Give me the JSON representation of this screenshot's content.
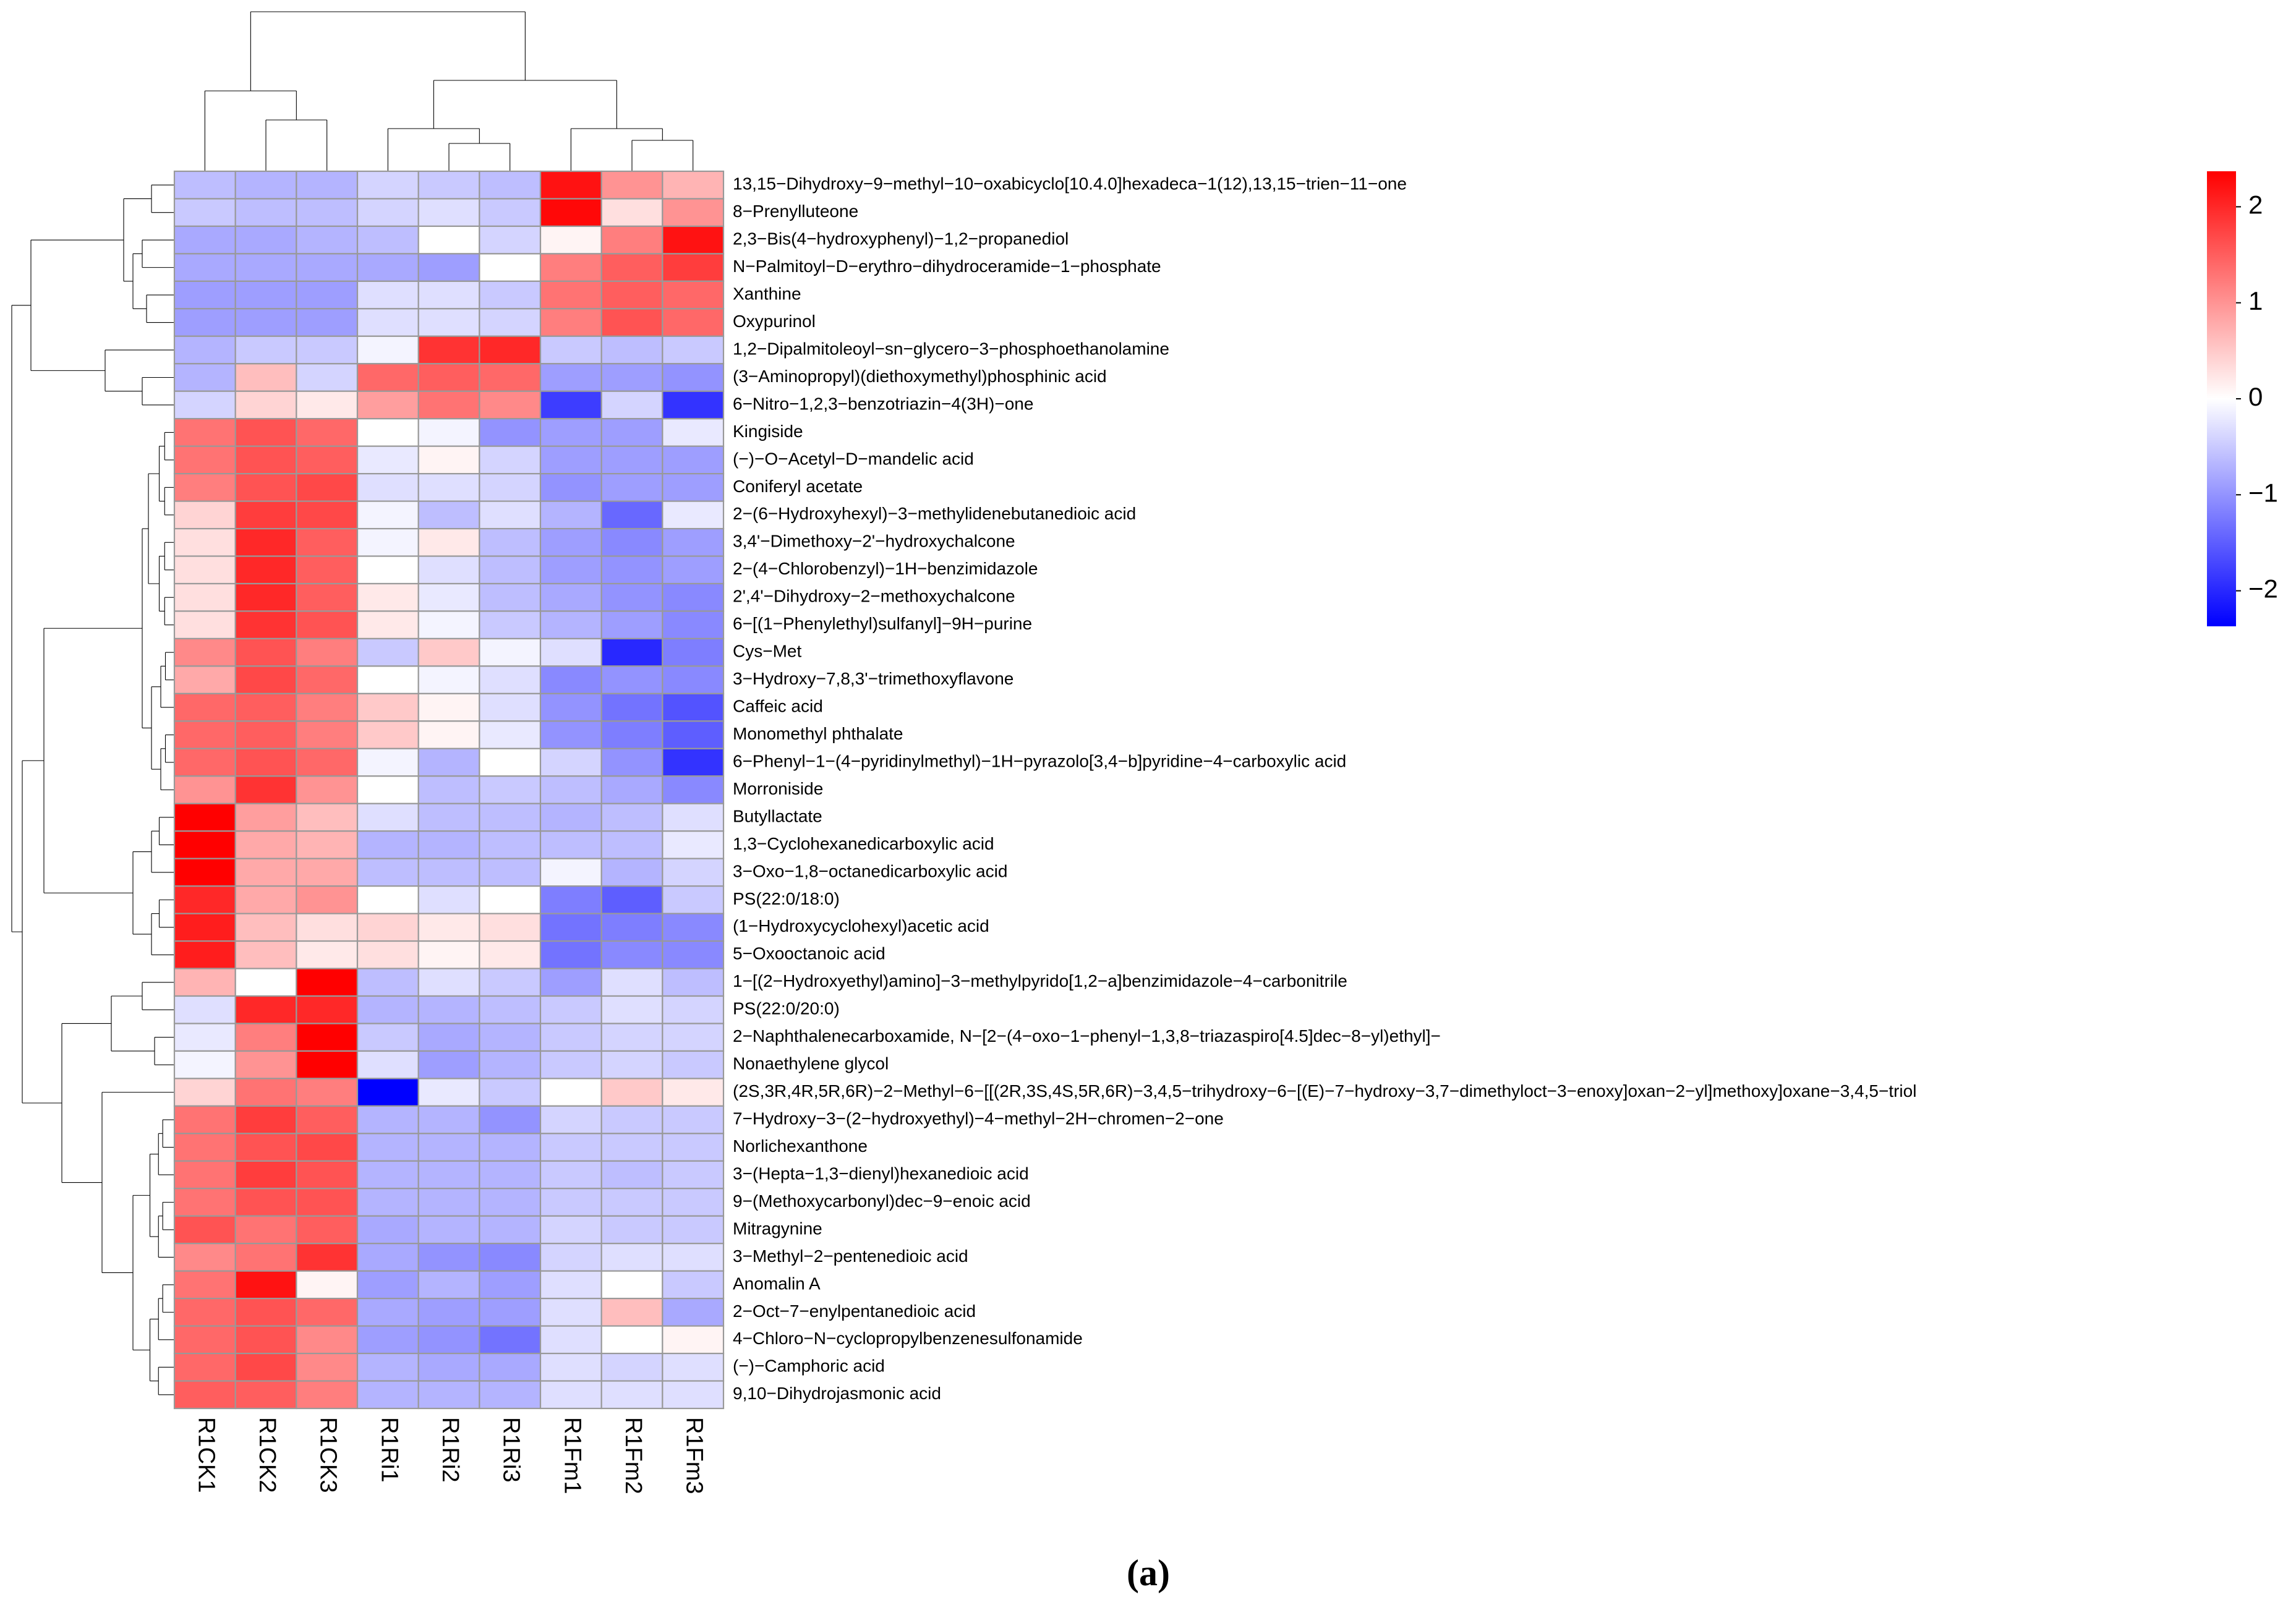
{
  "chart_data": {
    "type": "heatmap",
    "caption": "(a)",
    "columns": [
      "R1CK1",
      "R1CK2",
      "R1CK3",
      "R1Ri1",
      "R1Ri2",
      "R1Ri3",
      "R1Fm1",
      "R1Fm2",
      "R1Fm3"
    ],
    "rows": [
      "13,15−Dihydroxy−9−methyl−10−oxabicyclo[10.4.0]hexadeca−1(12),13,15−trien−11−one",
      "8−Prenylluteone",
      "2,3−Bis(4−hydroxyphenyl)−1,2−propanediol",
      "N−Palmitoyl−D−erythro−dihydroceramide−1−phosphate",
      "Xanthine",
      "Oxypurinol",
      "1,2−Dipalmitoleoyl−sn−glycero−3−phosphoethanolamine",
      "(3−Aminopropyl)(diethoxymethyl)phosphinic acid",
      "6−Nitro−1,2,3−benzotriazin−4(3H)−one",
      "Kingiside",
      "(−)−O−Acetyl−D−mandelic acid",
      "Coniferyl acetate",
      "2−(6−Hydroxyhexyl)−3−methylidenebutanedioic acid",
      "3,4'−Dimethoxy−2'−hydroxychalcone",
      "2−(4−Chlorobenzyl)−1H−benzimidazole",
      "2',4'−Dihydroxy−2−methoxychalcone",
      "6−[(1−Phenylethyl)sulfanyl]−9H−purine",
      "Cys−Met",
      "3−Hydroxy−7,8,3'−trimethoxyflavone",
      "Caffeic acid",
      "Monomethyl phthalate",
      "6−Phenyl−1−(4−pyridinylmethyl)−1H−pyrazolo[3,4−b]pyridine−4−carboxylic acid",
      "Morroniside",
      "Butyllactate",
      "1,3−Cyclohexanedicarboxylic acid",
      "3−Oxo−1,8−octanedicarboxylic acid",
      "PS(22:0/18:0)",
      "(1−Hydroxycyclohexyl)acetic acid",
      "5−Oxooctanoic acid",
      "1−[(2−Hydroxyethyl)amino]−3−methylpyrido[1,2−a]benzimidazole−4−carbonitrile",
      "PS(22:0/20:0)",
      "2−Naphthalenecarboxamide, N−[2−(4−oxo−1−phenyl−1,3,8−triazaspiro[4.5]dec−8−yl)ethyl]−",
      "Nonaethylene glycol",
      "(2S,3R,4R,5R,6R)−2−Methyl−6−[[(2R,3S,4S,5R,6R)−3,4,5−trihydroxy−6−[(E)−7−hydroxy−3,7−dimethyloct−3−enoxy]oxan−2−yl]methoxy]oxane−3,4,5−triol",
      "7−Hydroxy−3−(2−hydroxyethyl)−4−methyl−2H−chromen−2−one",
      "Norlichexanthone",
      "3−(Hepta−1,3−dienyl)hexanedioic acid",
      "9−(Methoxycarbonyl)dec−9−enoic acid",
      "Mitragynine",
      "3−Methyl−2−pentenedioic acid",
      "Anomalin A",
      "2−Oct−7−enylpentanedioic acid",
      "4−Chloro−N−cyclopropylbenzenesulfonamide",
      "(−)−Camphoric acid",
      "9,10−Dihydrojasmonic acid"
    ],
    "values": [
      [
        -0.6,
        -0.7,
        -0.7,
        -0.4,
        -0.5,
        -0.6,
        2.2,
        1.0,
        0.7
      ],
      [
        -0.5,
        -0.6,
        -0.6,
        -0.4,
        -0.3,
        -0.5,
        2.3,
        0.3,
        1.0
      ],
      [
        -0.8,
        -0.8,
        -0.7,
        -0.6,
        0.0,
        -0.4,
        0.1,
        1.2,
        2.2
      ],
      [
        -0.8,
        -0.8,
        -0.8,
        -0.8,
        -0.9,
        0.0,
        1.2,
        1.5,
        1.8
      ],
      [
        -0.9,
        -0.9,
        -0.9,
        -0.3,
        -0.3,
        -0.5,
        1.3,
        1.5,
        1.4
      ],
      [
        -0.9,
        -0.9,
        -0.9,
        -0.3,
        -0.3,
        -0.4,
        1.2,
        1.6,
        1.4
      ],
      [
        -0.7,
        -0.5,
        -0.5,
        -0.1,
        1.9,
        2.0,
        -0.5,
        -0.6,
        -0.5
      ],
      [
        -0.7,
        0.6,
        -0.4,
        1.4,
        1.5,
        1.4,
        -0.9,
        -0.9,
        -1.0
      ],
      [
        -0.4,
        0.4,
        0.2,
        0.9,
        1.3,
        1.1,
        -1.8,
        -0.4,
        -1.9
      ],
      [
        1.3,
        1.6,
        1.4,
        0.0,
        -0.1,
        -1.0,
        -0.9,
        -0.9,
        -0.2
      ],
      [
        1.3,
        1.6,
        1.5,
        -0.2,
        0.1,
        -0.4,
        -0.9,
        -0.9,
        -0.9
      ],
      [
        1.2,
        1.6,
        1.7,
        -0.3,
        -0.3,
        -0.4,
        -1.0,
        -0.9,
        -0.9
      ],
      [
        0.4,
        1.8,
        1.7,
        -0.1,
        -0.6,
        -0.3,
        -0.7,
        -1.4,
        -0.2
      ],
      [
        0.3,
        2.0,
        1.5,
        -0.1,
        0.2,
        -0.6,
        -0.9,
        -1.1,
        -0.9
      ],
      [
        0.3,
        2.0,
        1.5,
        0.0,
        -0.3,
        -0.6,
        -0.9,
        -1.0,
        -0.9
      ],
      [
        0.3,
        2.0,
        1.5,
        0.2,
        -0.2,
        -0.6,
        -0.8,
        -1.0,
        -1.1
      ],
      [
        0.3,
        1.9,
        1.6,
        0.2,
        -0.1,
        -0.5,
        -0.7,
        -0.9,
        -1.1
      ],
      [
        1.1,
        1.6,
        1.2,
        -0.5,
        0.5,
        -0.1,
        -0.3,
        -2.0,
        -1.2
      ],
      [
        0.8,
        1.7,
        1.4,
        0.0,
        -0.1,
        -0.3,
        -1.1,
        -1.0,
        -1.1
      ],
      [
        1.4,
        1.5,
        1.2,
        0.5,
        0.1,
        -0.3,
        -1.0,
        -1.3,
        -1.6
      ],
      [
        1.4,
        1.5,
        1.2,
        0.5,
        0.1,
        -0.2,
        -1.0,
        -1.2,
        -1.5
      ],
      [
        1.4,
        1.6,
        1.4,
        -0.1,
        -0.7,
        0.0,
        -0.4,
        -1.0,
        -1.9
      ],
      [
        1.0,
        1.9,
        1.0,
        0.0,
        -0.6,
        -0.5,
        -0.6,
        -0.8,
        -1.1
      ],
      [
        2.4,
        0.9,
        0.6,
        -0.3,
        -0.6,
        -0.6,
        -0.7,
        -0.6,
        -0.3
      ],
      [
        2.4,
        0.8,
        0.7,
        -0.7,
        -0.7,
        -0.6,
        -0.6,
        -0.6,
        -0.2
      ],
      [
        2.4,
        0.8,
        0.8,
        -0.6,
        -0.6,
        -0.6,
        -0.1,
        -0.7,
        -0.4
      ],
      [
        2.0,
        0.8,
        1.0,
        0.0,
        -0.3,
        0.0,
        -1.2,
        -1.5,
        -0.5
      ],
      [
        2.1,
        0.6,
        0.3,
        0.4,
        0.2,
        0.3,
        -1.3,
        -1.2,
        -1.1
      ],
      [
        2.1,
        0.6,
        0.2,
        0.3,
        0.1,
        0.2,
        -1.3,
        -1.1,
        -1.1
      ],
      [
        0.7,
        0.0,
        2.4,
        -0.6,
        -0.3,
        -0.5,
        -0.9,
        -0.3,
        -0.6
      ],
      [
        -0.3,
        2.0,
        2.0,
        -0.7,
        -0.7,
        -0.6,
        -0.5,
        -0.3,
        -0.4
      ],
      [
        -0.2,
        1.2,
        2.4,
        -0.5,
        -0.8,
        -0.7,
        -0.5,
        -0.4,
        -0.4
      ],
      [
        -0.1,
        1.0,
        2.4,
        -0.3,
        -0.9,
        -0.7,
        -0.5,
        -0.4,
        -0.5
      ],
      [
        0.4,
        1.3,
        1.2,
        -2.4,
        -0.2,
        -0.5,
        0.0,
        0.5,
        0.2
      ],
      [
        1.3,
        1.8,
        1.5,
        -0.7,
        -0.7,
        -1.0,
        -0.4,
        -0.5,
        -0.5
      ],
      [
        1.3,
        1.6,
        1.7,
        -0.7,
        -0.7,
        -0.7,
        -0.5,
        -0.5,
        -0.5
      ],
      [
        1.3,
        1.8,
        1.6,
        -0.7,
        -0.7,
        -0.7,
        -0.5,
        -0.6,
        -0.5
      ],
      [
        1.3,
        1.6,
        1.6,
        -0.7,
        -0.7,
        -0.7,
        -0.5,
        -0.5,
        -0.5
      ],
      [
        1.6,
        1.3,
        1.5,
        -0.8,
        -0.7,
        -0.7,
        -0.4,
        -0.5,
        -0.5
      ],
      [
        1.1,
        1.3,
        1.9,
        -0.8,
        -1.0,
        -1.1,
        -0.4,
        -0.3,
        -0.3
      ],
      [
        1.3,
        2.2,
        0.1,
        -0.9,
        -0.7,
        -0.9,
        -0.3,
        0.0,
        -0.5
      ],
      [
        1.4,
        1.6,
        1.4,
        -0.8,
        -0.9,
        -0.9,
        -0.3,
        0.6,
        -0.8
      ],
      [
        1.4,
        1.6,
        1.1,
        -0.9,
        -1.0,
        -1.3,
        -0.3,
        0.0,
        0.1
      ],
      [
        1.4,
        1.7,
        1.1,
        -0.7,
        -0.8,
        -0.8,
        -0.3,
        -0.4,
        -0.3
      ],
      [
        1.5,
        1.5,
        1.2,
        -0.7,
        -0.7,
        -0.7,
        -0.3,
        -0.3,
        -0.3
      ]
    ],
    "colormap": [
      "#0000FF",
      "#FFFFFF",
      "#FF0000"
    ],
    "zlim": [
      -2.37,
      2.37
    ],
    "colorbar_ticks": [
      {
        "value": -2,
        "label": "−2"
      },
      {
        "value": -1,
        "label": "−1"
      },
      0,
      1,
      2
    ],
    "cell_border": "#999999"
  }
}
